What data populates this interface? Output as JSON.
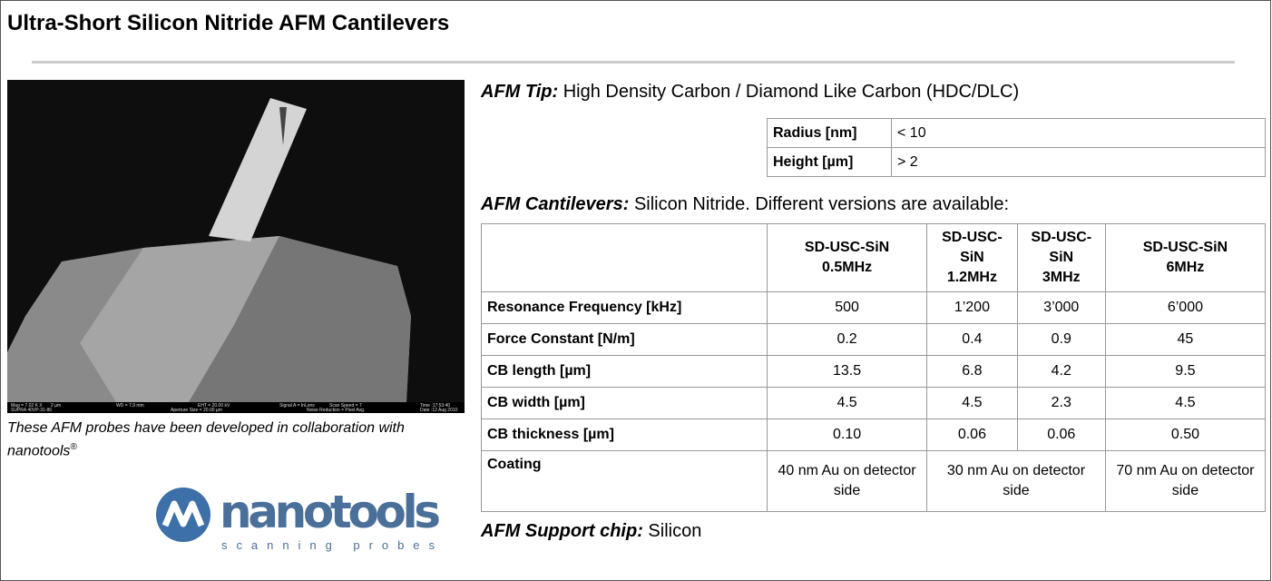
{
  "header": {
    "title": "Ultra-Short Silicon Nitride AFM Cantilevers"
  },
  "image": {
    "info_bar": [
      "Mag = 7.02 K X",
      "2 µm",
      "WD = 7.9 mm",
      "EHT = 20.00 kV",
      "Signal A = InLens",
      "Scan Speed = 7",
      "Time :17:53:40",
      "SUPRA 40VP-31-86",
      "Aperture Size = 20.00 µm",
      "Noise Reduction = Pixel Avg.",
      "Date :12 Aug 2010"
    ]
  },
  "caption": {
    "text": "These AFM probes have been developed in collaboration with nanotools",
    "mark": "®"
  },
  "logo": {
    "name": "nanotools",
    "tagline": "scanning probes"
  },
  "tip": {
    "label": "AFM Tip:",
    "text": "High Density Carbon / Diamond Like Carbon (HDC/DLC)"
  },
  "tip_table": {
    "rows": [
      [
        "Radius [nm]",
        "< 10"
      ],
      [
        "Height [µm]",
        "> 2"
      ]
    ]
  },
  "cantilevers": {
    "label": "AFM Cantilevers:",
    "text": "Silicon Nitride. Different versions are available:"
  },
  "cantilever_table": {
    "columns": [
      {
        "name": "SD-USC-SiN",
        "version": "0.5MHz"
      },
      {
        "name": "SD-USC-SiN",
        "version": "1.2MHz"
      },
      {
        "name": "SD-USC-SiN",
        "version": "3MHz"
      },
      {
        "name": "SD-USC-SiN",
        "version": "6MHz"
      }
    ],
    "rows": [
      [
        "Resonance Frequency [kHz]",
        "500",
        "1’200",
        "3’000",
        "6’000"
      ],
      [
        "Force Constant [N/m]",
        "0.2",
        "0.4",
        "0.9",
        "45"
      ],
      [
        "CB length [µm]",
        "13.5",
        "6.8",
        "4.2",
        "9.5"
      ],
      [
        "CB width [µm]",
        "4.5",
        "4.5",
        "2.3",
        "4.5"
      ],
      [
        "CB thickness [µm]",
        "0.10",
        "0.06",
        "0.06",
        "0.50"
      ],
      [
        "Coating",
        "40 nm Au on detector side",
        "30 nm Au on detector side",
        "70 nm Au on detector side"
      ]
    ]
  },
  "support": {
    "label": "AFM Support chip:",
    "text": "Silicon"
  }
}
